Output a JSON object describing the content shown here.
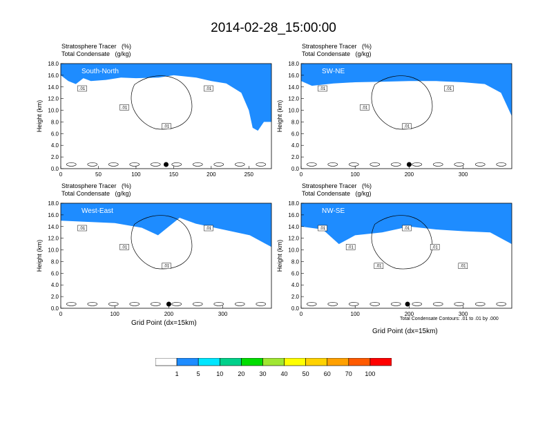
{
  "figure": {
    "title": "2014-02-28_15:00:00",
    "footnote": "Total Condensate Contours: .01 to .01 by .000"
  },
  "colorbar": {
    "colors": [
      "#ffffff",
      "#1e8cff",
      "#00e6ff",
      "#00d08a",
      "#00dd00",
      "#a0e632",
      "#ffff00",
      "#ffd200",
      "#ffa000",
      "#ff5a00",
      "#ff0000"
    ],
    "labels": [
      "1",
      "5",
      "10",
      "20",
      "30",
      "40",
      "50",
      "60",
      "70",
      "100"
    ]
  },
  "chart_data": [
    {
      "type": "heatmap",
      "panel_label": "South-North",
      "header_line1": "Stratosphere Tracer   (%)",
      "header_line2": "Total Condensate   (g/kg)",
      "ylabel": "Height (km)",
      "xlabel": "",
      "xlim": [
        0,
        280
      ],
      "ylim": [
        0,
        18
      ],
      "x_ticks": [
        "0",
        "50",
        "100",
        "150",
        "200",
        "250"
      ],
      "y_ticks": [
        "0.0",
        "2.0",
        "4.0",
        "6.0",
        "8.0",
        "10.0",
        "12.0",
        "14.0",
        "16.0",
        "18.0"
      ],
      "contour_labels": [
        ".01",
        ".01",
        ".01",
        ".01"
      ],
      "marker_x": 140,
      "tropopause": [
        [
          0,
          16
        ],
        [
          10,
          15
        ],
        [
          20,
          14.5
        ],
        [
          30,
          15.5
        ],
        [
          40,
          15
        ],
        [
          60,
          15.2
        ],
        [
          80,
          15.6
        ],
        [
          100,
          15.5
        ],
        [
          130,
          15.6
        ],
        [
          150,
          16
        ],
        [
          180,
          15.6
        ],
        [
          200,
          15
        ],
        [
          220,
          14.6
        ],
        [
          240,
          13
        ],
        [
          250,
          10
        ],
        [
          255,
          7
        ],
        [
          262,
          6.5
        ],
        [
          270,
          8
        ],
        [
          280,
          8
        ]
      ]
    },
    {
      "type": "heatmap",
      "panel_label": "SW-NE",
      "header_line1": "Stratosphere Tracer   (%)",
      "header_line2": "Total Condensate   (g/kg)",
      "ylabel": "Height (km)",
      "xlabel": "",
      "xlim": [
        0,
        390
      ],
      "ylim": [
        0,
        18
      ],
      "x_ticks": [
        "0",
        "100",
        "200",
        "300"
      ],
      "y_ticks": [
        "0.0",
        "2.0",
        "4.0",
        "6.0",
        "8.0",
        "10.0",
        "12.0",
        "14.0",
        "16.0",
        "18.0"
      ],
      "contour_labels": [
        ".01",
        ".01",
        ".01",
        ".01"
      ],
      "marker_x": 200,
      "tropopause": [
        [
          0,
          15
        ],
        [
          20,
          14.2
        ],
        [
          60,
          14.6
        ],
        [
          100,
          14.8
        ],
        [
          150,
          14.9
        ],
        [
          200,
          15
        ],
        [
          250,
          15
        ],
        [
          300,
          14.8
        ],
        [
          340,
          14.5
        ],
        [
          370,
          13
        ],
        [
          385,
          10
        ],
        [
          390,
          9
        ]
      ]
    },
    {
      "type": "heatmap",
      "panel_label": "West-East",
      "header_line1": "Stratosphere Tracer   (%)",
      "header_line2": "Total Condensate   (g/kg)",
      "ylabel": "Height (km)",
      "xlabel": "",
      "xlim": [
        0,
        390
      ],
      "ylim": [
        0,
        18
      ],
      "x_ticks": [
        "0",
        "100",
        "200",
        "300"
      ],
      "y_ticks": [
        "0.0",
        "2.0",
        "4.0",
        "6.0",
        "8.0",
        "10.0",
        "12.0",
        "14.0",
        "16.0",
        "18.0"
      ],
      "contour_labels": [
        ".01",
        ".01",
        ".01",
        ".01"
      ],
      "marker_x": 200,
      "tropopause": [
        [
          0,
          15
        ],
        [
          50,
          14.8
        ],
        [
          100,
          14.6
        ],
        [
          150,
          13.8
        ],
        [
          180,
          12.5
        ],
        [
          200,
          14
        ],
        [
          220,
          15.5
        ],
        [
          250,
          14.5
        ],
        [
          300,
          13.5
        ],
        [
          350,
          12.5
        ],
        [
          390,
          10.5
        ]
      ]
    },
    {
      "type": "heatmap",
      "panel_label": "NW-SE",
      "header_line1": "Stratosphere Tracer   (%)",
      "header_line2": "Total Condensate   (g/kg)",
      "ylabel": "Height (km)",
      "xlabel": "",
      "xlim": [
        0,
        390
      ],
      "ylim": [
        0,
        18
      ],
      "x_ticks": [
        "0",
        "100",
        "200",
        "300"
      ],
      "y_ticks": [
        "0.0",
        "2.0",
        "4.0",
        "6.0",
        "8.0",
        "10.0",
        "12.0",
        "14.0",
        "16.0",
        "18.0"
      ],
      "contour_labels": [
        ".01",
        ".01",
        ".01",
        ".01",
        ".01",
        ".01"
      ],
      "marker_x": 197,
      "tropopause": [
        [
          0,
          14
        ],
        [
          40,
          13.5
        ],
        [
          70,
          11
        ],
        [
          100,
          12.5
        ],
        [
          150,
          13
        ],
        [
          200,
          14
        ],
        [
          250,
          13.5
        ],
        [
          300,
          13.2
        ],
        [
          350,
          13
        ],
        [
          390,
          11
        ]
      ]
    }
  ],
  "xaxis_titles": [
    "Grid Point (dx=15km)",
    "Grid Point (dx=15km)"
  ]
}
